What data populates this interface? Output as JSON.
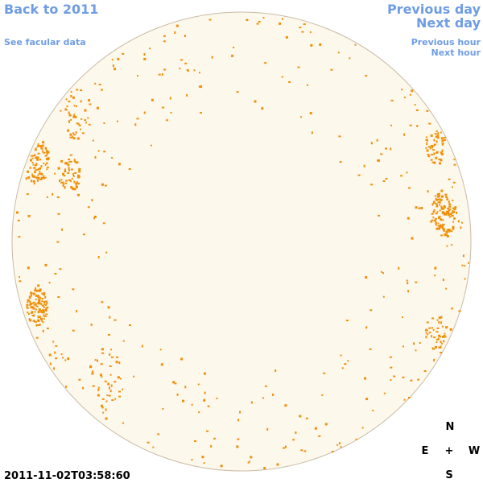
{
  "links": {
    "back": "Back to 2011",
    "facular": "See facular data",
    "previous_day": "Previous day",
    "next_day": "Next day",
    "previous_hour": "Previous hour",
    "next_hour": "Next hour"
  },
  "timestamp": "2011-11-02T03:58:60",
  "compass": {
    "north": "N",
    "east": "E",
    "center": "+",
    "west": "W",
    "south": "S"
  }
}
